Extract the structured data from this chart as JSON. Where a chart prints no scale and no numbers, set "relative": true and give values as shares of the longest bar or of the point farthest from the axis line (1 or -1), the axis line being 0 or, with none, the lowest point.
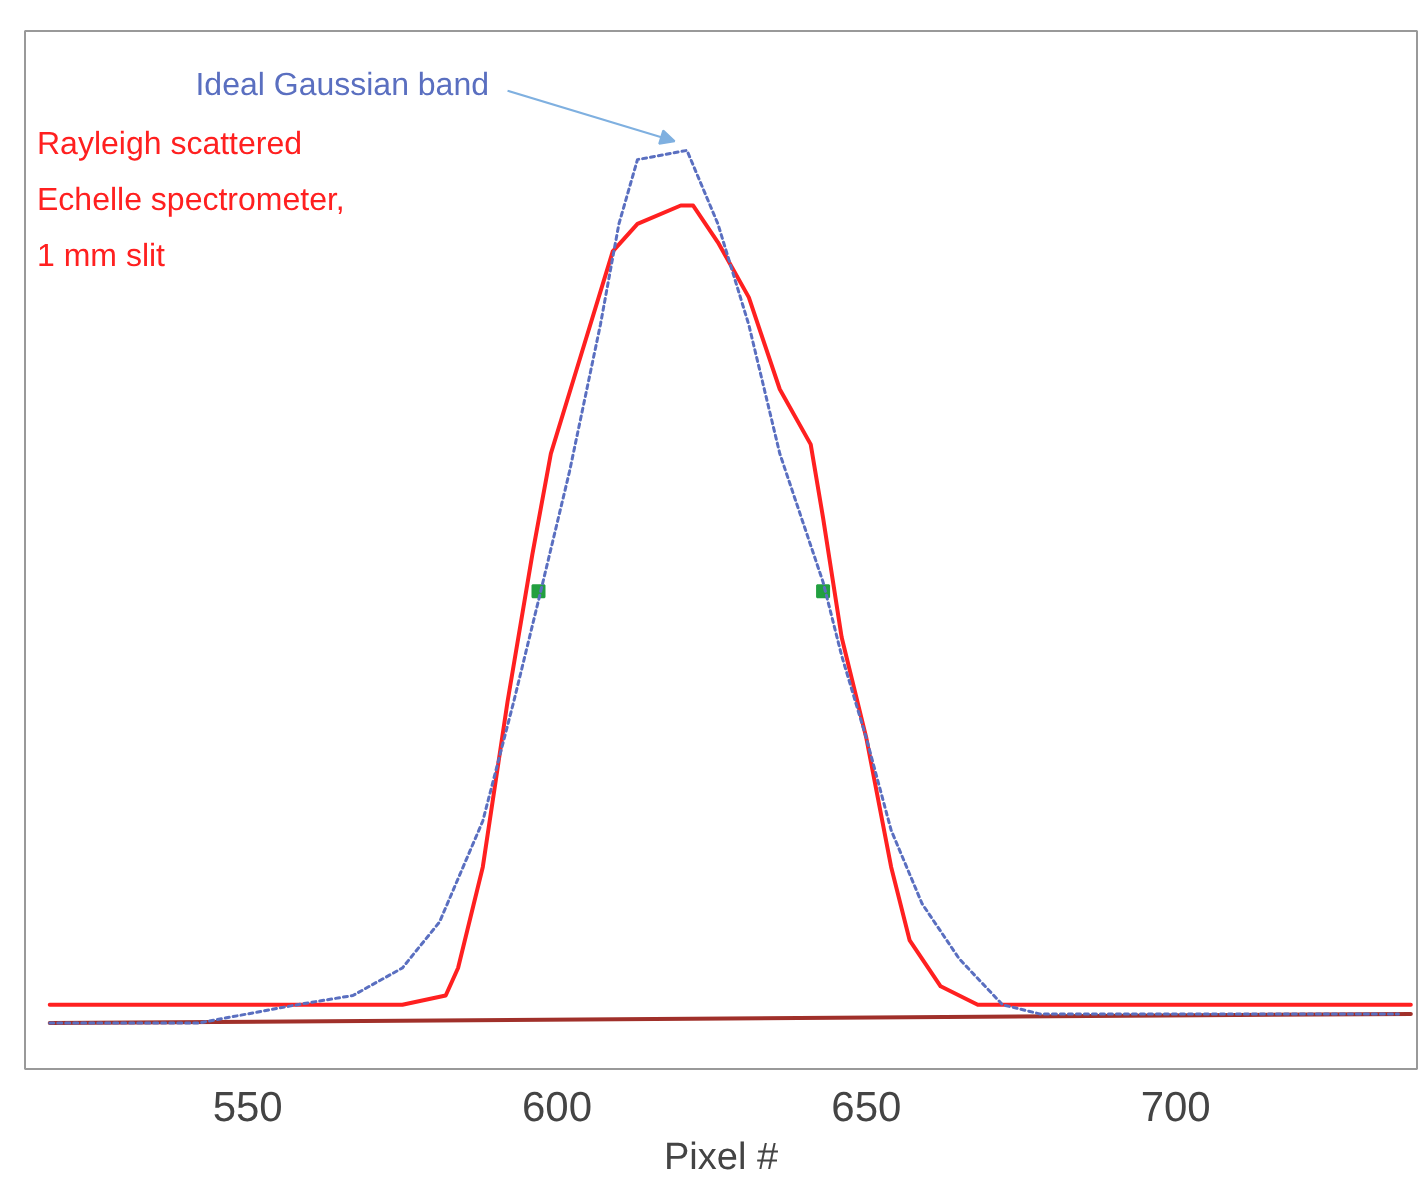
{
  "chart_data": {
    "type": "line",
    "relative": true,
    "xlabel": "Pixel #",
    "xlim": [
      514,
      739
    ],
    "xticks": [
      550,
      600,
      650,
      700
    ],
    "grid": false,
    "annotations": [
      {
        "text": "Ideal Gaussian band",
        "x": 621,
        "y": 1.0
      },
      "Rayleigh scattered",
      "Echelle spectrometer,",
      "1 mm slit"
    ],
    "series": [
      {
        "color": "#5a6fc0",
        "line_style": "dotted",
        "x": [
          518,
          542,
          558,
          567,
          575,
          581,
          588,
          593,
          597,
          602,
          607,
          610,
          613,
          621,
          626,
          631,
          636,
          643,
          646,
          650,
          654,
          659,
          665,
          672,
          678,
          691,
          736
        ],
        "values": [
          0.05,
          0.05,
          0.07,
          0.08,
          0.11,
          0.16,
          0.27,
          0.4,
          0.51,
          0.65,
          0.81,
          0.92,
          0.99,
          1.0,
          0.92,
          0.81,
          0.67,
          0.53,
          0.45,
          0.36,
          0.26,
          0.18,
          0.12,
          0.07,
          0.06,
          0.06,
          0.06
        ]
      },
      {
        "color": "#ff2020",
        "line_style": "solid",
        "x": [
          518,
          558,
          575,
          582,
          584,
          588,
          592,
          596,
          599,
          604,
          609,
          613,
          620,
          622,
          626,
          631,
          636,
          641,
          643,
          646,
          650,
          654,
          657,
          662,
          668,
          688,
          738
        ],
        "values": [
          0.07,
          0.07,
          0.07,
          0.08,
          0.11,
          0.22,
          0.4,
          0.56,
          0.67,
          0.78,
          0.89,
          0.92,
          0.94,
          0.94,
          0.9,
          0.84,
          0.74,
          0.68,
          0.6,
          0.47,
          0.36,
          0.22,
          0.14,
          0.09,
          0.07,
          0.07,
          0.07
        ]
      },
      {
        "color": "#a0302a",
        "line_style": "solid",
        "x": [
          518,
          738
        ],
        "values": [
          0.05,
          0.06
        ]
      },
      {
        "type": "scatter",
        "marker": "square",
        "color": "#22a040",
        "x": [
          597,
          643
        ],
        "values": [
          0.52,
          0.52
        ]
      }
    ]
  }
}
